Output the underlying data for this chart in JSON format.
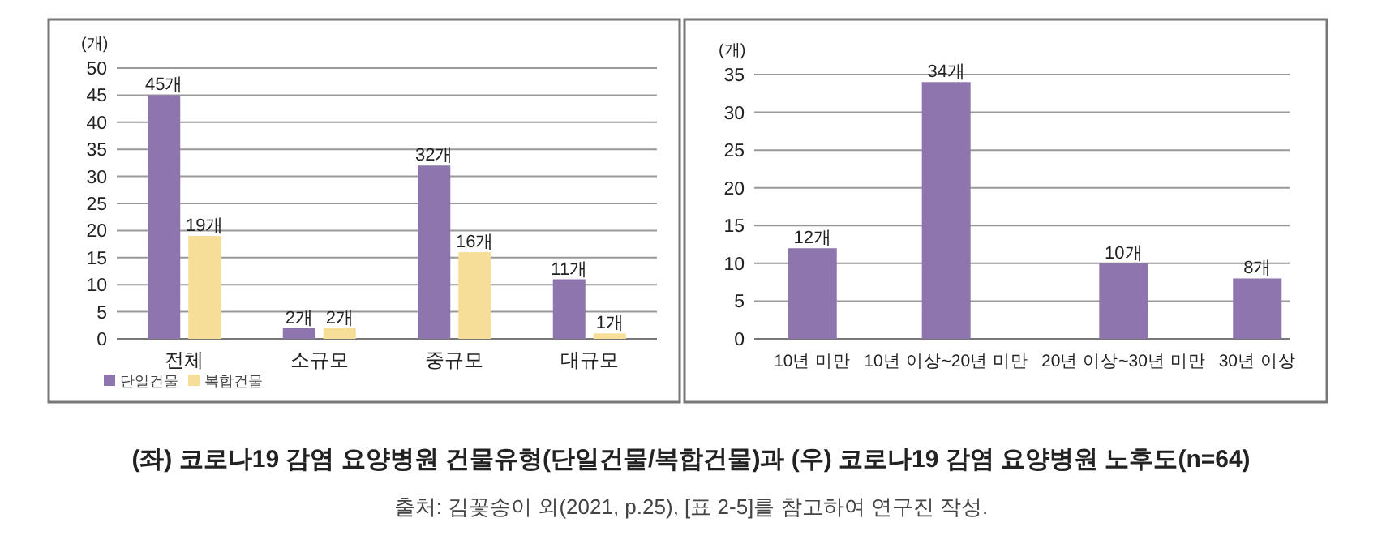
{
  "chart_data": [
    {
      "type": "bar",
      "title": "(좌) 코로나19 감염 요양병원 건물유형(단일건물/복합건물)과 (우) 코로나19 감염 요양병원 노후도(n=64)",
      "annotations": [
        "출처: 김꽃송이 외(2021, p.25), [표 2-5]를 참고하여 연구진 작성."
      ],
      "ylabel": "(개)",
      "categories": [
        "전체",
        "소규모",
        "중규모",
        "대규모"
      ],
      "series": [
        {
          "name": "단일건물",
          "color": "#8e75ad",
          "values": [
            45,
            2,
            32,
            11
          ],
          "value_labels": [
            "45개",
            "2개",
            "32개",
            "11개"
          ]
        },
        {
          "name": "복합건물",
          "color": "#f7de98",
          "values": [
            19,
            2,
            16,
            1
          ],
          "value_labels": [
            "19개",
            "2개",
            "16개",
            "1개"
          ]
        }
      ],
      "ylim": [
        0,
        50
      ],
      "yticks": [
        0,
        5,
        10,
        15,
        20,
        25,
        30,
        35,
        40,
        45,
        50
      ],
      "grid": "y",
      "legend": "bottom left"
    },
    {
      "type": "bar",
      "ylabel": "(개)",
      "categories": [
        "10년 미만",
        "10년 이상~20년 미만",
        "20년 이상~30년 미만",
        "30년 이상"
      ],
      "series": [
        {
          "color": "#8e75ad",
          "values": [
            12,
            34,
            10,
            8
          ],
          "value_labels": [
            "12개",
            "34개",
            "10개",
            "8개"
          ]
        }
      ],
      "ylim": [
        0,
        35
      ],
      "yticks": [
        0,
        5,
        10,
        15,
        20,
        25,
        30,
        35
      ],
      "grid": "y"
    }
  ]
}
